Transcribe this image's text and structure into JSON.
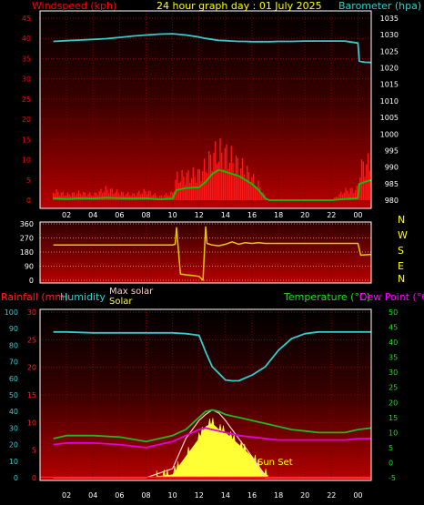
{
  "title": "24 hour graph day : 01 July 2025",
  "colors": {
    "wind": "#ff0000",
    "gust": "#ff1a1a",
    "avgwind": "#00cc00",
    "baro": "#33cccc",
    "dir": "#e6c800",
    "humidity": "#33cccc",
    "temp": "#22b822",
    "dew": "#e000e0",
    "solar": "#ffff33",
    "maxsolar": "#ffcccc",
    "rain": "#ff2020",
    "frame": "#ffffff",
    "compass": "#ffff00",
    "sunset": "#ff6666"
  },
  "x_tick_labels": [
    "02",
    "04",
    "06",
    "08",
    "10",
    "12",
    "14",
    "16",
    "18",
    "20",
    "22",
    "00"
  ],
  "panel1": {
    "left_label": "Windspeed (kph)",
    "right_label": "Barometer (hpa)",
    "wind_ticks": [
      "0",
      "5",
      "10",
      "15",
      "20",
      "25",
      "30",
      "35",
      "40",
      "45"
    ],
    "baro_ticks": [
      "980",
      "985",
      "990",
      "995",
      "1000",
      "1005",
      "1010",
      "1015",
      "1020",
      "1025",
      "1030",
      "1035"
    ]
  },
  "panel2": {
    "dir_ticks": [
      "0",
      "90",
      "180",
      "270",
      "360"
    ],
    "compass_labels": [
      "N",
      "W",
      "S",
      "E",
      "N"
    ]
  },
  "panel3": {
    "rain_label": "Rainfall (mm)",
    "humidity_label": "Humidity",
    "maxsolar_label": "Max solar",
    "solar_label": "Solar",
    "temp_label": "Temperature (°C)",
    "dew_label": "Dew Point (°C)",
    "humidity_ticks": [
      "0",
      "10",
      "20",
      "30",
      "40",
      "50",
      "60",
      "70",
      "80",
      "90",
      "100"
    ],
    "rain_ticks": [
      "0",
      "5",
      "10",
      "15",
      "20",
      "25",
      "30"
    ],
    "temp_ticks": [
      "-5",
      "0",
      "5",
      "10",
      "15",
      "20",
      "25",
      "30",
      "35",
      "40",
      "45",
      "50"
    ],
    "sunset_label": "Sun Set"
  },
  "chart_data": [
    {
      "type": "line",
      "title": "24 hour graph day : 01 July 2025",
      "xlabel": "",
      "ylabel": "Windspeed (kph)",
      "y2label": "Barometer (hpa)",
      "ylim": [
        0,
        45
      ],
      "y2lim": [
        980,
        1035
      ],
      "x_hours": [
        1,
        2,
        3,
        4,
        5,
        6,
        7,
        8,
        9,
        10,
        10.3,
        11,
        12,
        12.5,
        13,
        13.5,
        14,
        14.5,
        15,
        15.5,
        16,
        16.5,
        17,
        17.3,
        18,
        19,
        20,
        21,
        22,
        23,
        24,
        24.1,
        24.5,
        25
      ],
      "series": [
        {
          "name": "Barometer",
          "axis": "y2",
          "values": [
            1028,
            1028.2,
            1028.4,
            1028.6,
            1028.8,
            1029.2,
            1029.6,
            1029.9,
            1030.2,
            1030.3,
            1030.2,
            1029.9,
            1029.3,
            1028.9,
            1028.6,
            1028.3,
            1028.2,
            1028.1,
            1028.0,
            1028.0,
            1027.9,
            1027.9,
            1027.9,
            1027.9,
            1028.0,
            1028.0,
            1028.1,
            1028.1,
            1028.1,
            1028.1,
            1027.5,
            1022.0,
            1021.7,
            1021.6
          ]
        },
        {
          "name": "Wind gust",
          "axis": "y",
          "values": [
            2.5,
            1.5,
            2,
            1.5,
            3,
            2,
            1.5,
            2.5,
            1,
            2,
            6,
            6.5,
            7,
            9,
            12,
            13,
            12.5,
            11,
            9.5,
            8,
            6,
            4,
            1,
            0,
            0,
            0,
            0,
            0,
            0,
            2.5,
            3,
            8.5,
            9.5,
            10
          ]
        },
        {
          "name": "Average wind",
          "axis": "y",
          "values": [
            0.5,
            0.3,
            0.5,
            0.4,
            0.6,
            0.5,
            0.4,
            0.5,
            0.2,
            0.4,
            2.5,
            3,
            3.2,
            4.5,
            6.5,
            7.5,
            7,
            6.5,
            6,
            5,
            4,
            2.5,
            0.5,
            0,
            0,
            0,
            0,
            0,
            0,
            0.3,
            0.5,
            4,
            4.5,
            5
          ]
        }
      ]
    },
    {
      "type": "line",
      "ylabel": "Wind direction",
      "ylim": [
        0,
        360
      ],
      "x_hours": [
        1,
        10,
        10.2,
        10.3,
        10.6,
        11,
        11.5,
        12,
        12.3,
        12.5,
        12.6,
        13,
        13.5,
        14,
        14.5,
        15,
        15.5,
        16,
        16.5,
        17,
        24,
        24.2,
        25
      ],
      "series": [
        {
          "name": "Direction",
          "values": [
            225,
            225,
            230,
            335,
            40,
            35,
            30,
            25,
            0,
            340,
            235,
            225,
            220,
            230,
            245,
            230,
            240,
            235,
            240,
            235,
            235,
            160,
            165
          ]
        }
      ]
    },
    {
      "type": "line",
      "ylabel": "Humidity",
      "y2label": "Temperature (°C)",
      "ylim": [
        0,
        100
      ],
      "y2lim": [
        -5,
        50
      ],
      "x_hours": [
        1,
        2,
        4,
        6,
        8,
        10,
        11,
        12,
        12.5,
        13,
        13.5,
        14,
        14.5,
        15,
        16,
        17,
        18,
        19,
        20,
        21,
        22,
        23,
        24,
        25
      ],
      "series": [
        {
          "name": "Humidity",
          "axis": "y",
          "values": [
            88,
            88,
            87.5,
            87.5,
            87.5,
            87.5,
            87,
            86,
            76,
            67,
            63,
            59,
            58.5,
            58.5,
            62,
            67,
            77,
            84,
            87,
            88,
            88,
            88,
            88,
            88
          ],
          "unit": "%"
        },
        {
          "name": "Temperature",
          "axis": "y2",
          "values": [
            8,
            9,
            9,
            8.5,
            7,
            9,
            11,
            15,
            17,
            17.5,
            17,
            16,
            15.5,
            15,
            14,
            13,
            12,
            11,
            10.5,
            10,
            10,
            10,
            11,
            11.5
          ]
        },
        {
          "name": "Dew Point",
          "axis": "y2",
          "values": [
            6,
            6.5,
            6.5,
            6,
            5,
            7,
            9,
            11,
            11.5,
            11,
            10.5,
            10,
            9.5,
            9,
            8.5,
            8,
            7.5,
            7.5,
            7.5,
            7.5,
            7.5,
            7.5,
            8,
            8
          ]
        },
        {
          "name": "Solar",
          "axis": "y2",
          "values": [
            -5,
            -5,
            -5,
            -5,
            -5,
            -4,
            2,
            8,
            12,
            13,
            11,
            10,
            8,
            6,
            2,
            -4,
            -5,
            -5,
            -5,
            -5,
            -5,
            -5,
            -5,
            -5
          ]
        },
        {
          "name": "Max solar",
          "axis": "y2",
          "values": [
            -5,
            -5,
            -5,
            -5,
            -5,
            -2,
            8,
            14,
            16,
            17.5,
            16.5,
            14,
            11,
            8,
            2,
            -5,
            -5,
            -5,
            -5,
            -5,
            -5,
            -5,
            -5,
            -5
          ]
        },
        {
          "name": "Rainfall",
          "axis": "rain",
          "values": [
            0,
            0,
            0,
            0,
            0,
            0,
            0,
            0,
            0,
            0,
            0,
            0,
            0,
            0,
            0,
            0,
            0,
            0,
            0,
            0,
            0,
            0,
            0,
            0
          ]
        }
      ]
    }
  ]
}
